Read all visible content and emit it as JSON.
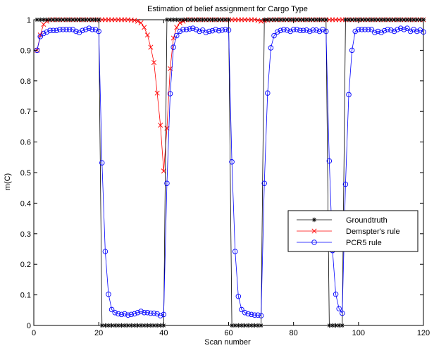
{
  "chart_data": {
    "type": "line",
    "title": "Estimation of belief assignment for Cargo Type",
    "xlabel": "Scan number",
    "ylabel": "m(C)",
    "xlim": [
      0,
      120
    ],
    "ylim": [
      0,
      1
    ],
    "xticks": [
      0,
      20,
      40,
      60,
      80,
      100,
      120
    ],
    "yticks": [
      0,
      0.1,
      0.2,
      0.3,
      0.4,
      0.5,
      0.6,
      0.7,
      0.8,
      0.9,
      1
    ],
    "xtick_labels": [
      "0",
      "20",
      "40",
      "60",
      "80",
      "100",
      "120"
    ],
    "ytick_labels": [
      "0",
      "0.1",
      "0.2",
      "0.3",
      "0.4",
      "0.5",
      "0.6",
      "0.7",
      "0.8",
      "0.9",
      "1"
    ],
    "grid": false,
    "legend_placement": "lower-right",
    "x": [
      1,
      2,
      3,
      4,
      5,
      6,
      7,
      8,
      9,
      10,
      11,
      12,
      13,
      14,
      15,
      16,
      17,
      18,
      19,
      20,
      21,
      22,
      23,
      24,
      25,
      26,
      27,
      28,
      29,
      30,
      31,
      32,
      33,
      34,
      35,
      36,
      37,
      38,
      39,
      40,
      41,
      42,
      43,
      44,
      45,
      46,
      47,
      48,
      49,
      50,
      51,
      52,
      53,
      54,
      55,
      56,
      57,
      58,
      59,
      60,
      61,
      62,
      63,
      64,
      65,
      66,
      67,
      68,
      69,
      70,
      71,
      72,
      73,
      74,
      75,
      76,
      77,
      78,
      79,
      80,
      81,
      82,
      83,
      84,
      85,
      86,
      87,
      88,
      89,
      90,
      91,
      92,
      93,
      94,
      95,
      96,
      97,
      98,
      99,
      100,
      101,
      102,
      103,
      104,
      105,
      106,
      107,
      108,
      109,
      110,
      111,
      112,
      113,
      114,
      115,
      116,
      117,
      118,
      119,
      120
    ],
    "series": [
      {
        "name": "Groundtruth",
        "color": "#000000",
        "marker": "asterisk",
        "values": [
          1,
          1,
          1,
          1,
          1,
          1,
          1,
          1,
          1,
          1,
          1,
          1,
          1,
          1,
          1,
          1,
          1,
          1,
          1,
          1,
          0,
          0,
          0,
          0,
          0,
          0,
          0,
          0,
          0,
          0,
          0,
          0,
          0,
          0,
          0,
          0,
          0,
          0,
          0,
          0,
          1,
          1,
          1,
          1,
          1,
          1,
          1,
          1,
          1,
          1,
          1,
          1,
          1,
          1,
          1,
          1,
          1,
          1,
          1,
          1,
          0,
          0,
          0,
          0,
          0,
          0,
          0,
          0,
          0,
          0,
          1,
          1,
          1,
          1,
          1,
          1,
          1,
          1,
          1,
          1,
          1,
          1,
          1,
          1,
          1,
          1,
          1,
          1,
          1,
          1,
          0,
          0,
          0,
          0,
          0,
          1,
          1,
          1,
          1,
          1,
          1,
          1,
          1,
          1,
          1,
          1,
          1,
          1,
          1,
          1,
          1,
          1,
          1,
          1,
          1,
          1,
          1,
          1,
          1,
          1
        ]
      },
      {
        "name": "Demspter's rule",
        "color": "#ff0000",
        "marker": "x",
        "values": [
          0.9,
          0.95,
          0.985,
          0.995,
          1,
          1,
          1,
          1,
          1,
          1,
          1,
          1,
          1,
          1,
          1,
          1,
          1,
          1,
          1,
          1,
          1,
          1,
          1,
          1,
          1,
          1,
          1,
          1,
          1,
          0.999,
          0.998,
          0.995,
          0.99,
          0.975,
          0.95,
          0.91,
          0.86,
          0.76,
          0.655,
          0.505,
          0.645,
          0.84,
          0.94,
          0.975,
          0.99,
          0.995,
          1,
          1,
          1,
          1,
          1,
          1,
          1,
          1,
          1,
          1,
          1,
          1,
          1,
          1,
          1,
          1,
          1,
          1,
          1,
          1,
          1,
          1,
          0.998,
          0.995,
          0.997,
          0.999,
          1,
          1,
          1,
          1,
          1,
          1,
          1,
          1,
          1,
          1,
          1,
          1,
          1,
          1,
          1,
          1,
          1,
          1,
          1,
          1,
          1,
          1,
          1,
          1,
          1,
          1,
          1,
          1,
          1,
          1,
          1,
          1,
          1,
          1,
          1,
          1,
          1,
          1,
          1,
          1,
          1,
          1,
          1,
          1,
          1,
          1,
          1,
          1
        ]
      },
      {
        "name": "PCR5 rule",
        "color": "#0000ff",
        "marker": "circle",
        "values": [
          0.9,
          0.945,
          0.955,
          0.96,
          0.965,
          0.965,
          0.965,
          0.968,
          0.968,
          0.968,
          0.968,
          0.968,
          0.962,
          0.958,
          0.965,
          0.968,
          0.972,
          0.968,
          0.968,
          0.962,
          0.532,
          0.242,
          0.102,
          0.052,
          0.042,
          0.038,
          0.036,
          0.038,
          0.034,
          0.036,
          0.038,
          0.042,
          0.046,
          0.042,
          0.042,
          0.04,
          0.04,
          0.038,
          0.032,
          0.036,
          0.465,
          0.758,
          0.91,
          0.948,
          0.962,
          0.968,
          0.968,
          0.97,
          0.972,
          0.968,
          0.962,
          0.966,
          0.958,
          0.962,
          0.964,
          0.968,
          0.964,
          0.966,
          0.968,
          0.966,
          0.535,
          0.242,
          0.095,
          0.052,
          0.042,
          0.038,
          0.036,
          0.034,
          0.034,
          0.032,
          0.465,
          0.76,
          0.908,
          0.948,
          0.96,
          0.965,
          0.968,
          0.966,
          0.962,
          0.968,
          0.968,
          0.965,
          0.965,
          0.966,
          0.962,
          0.966,
          0.966,
          0.962,
          0.968,
          0.962,
          0.538,
          0.245,
          0.102,
          0.055,
          0.04,
          0.462,
          0.755,
          0.9,
          0.962,
          0.968,
          0.968,
          0.968,
          0.968,
          0.968,
          0.958,
          0.962,
          0.958,
          0.964,
          0.968,
          0.966,
          0.962,
          0.968,
          0.972,
          0.968,
          0.972,
          0.962,
          0.968,
          0.962,
          0.966,
          0.96
        ]
      }
    ]
  }
}
